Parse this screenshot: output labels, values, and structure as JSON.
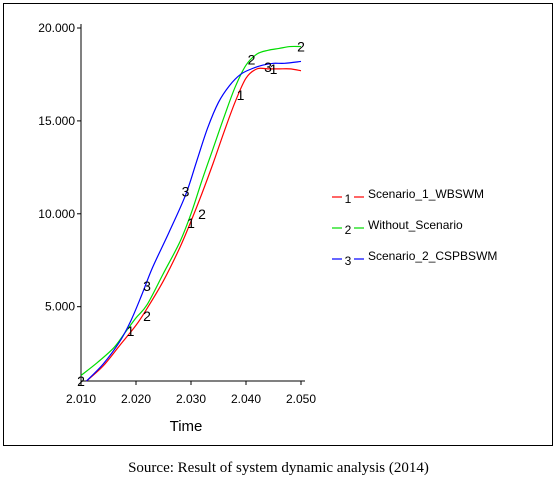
{
  "caption": "Source: Result of system dynamic analysis (2014)",
  "chart_data": {
    "type": "line",
    "xlabel": "Time",
    "ylabel": "",
    "xlim": [
      2010,
      2050
    ],
    "ylim": [
      1000,
      20000
    ],
    "x_ticks": [
      2010,
      2020,
      2030,
      2040,
      2050
    ],
    "x_tick_labels": [
      "2.010",
      "2.020",
      "2.030",
      "2.040",
      "2.050"
    ],
    "y_ticks": [
      5000,
      10000,
      15000,
      20000
    ],
    "y_tick_labels": [
      "5.000",
      "10.000",
      "15.000",
      "20.000"
    ],
    "legend_position": "right",
    "grid": false,
    "series": [
      {
        "name": "Scenario_1_WBSWM",
        "marker": "1",
        "color": "#ff0000",
        "x": [
          2011,
          2014,
          2017,
          2020,
          2022,
          2025,
          2028,
          2030,
          2032,
          2034,
          2036,
          2038,
          2040,
          2042,
          2044,
          2046,
          2048,
          2050
        ],
        "y": [
          1000,
          1800,
          2900,
          4000,
          4900,
          6400,
          8200,
          9600,
          11100,
          12700,
          14400,
          16000,
          17300,
          17800,
          17800,
          17800,
          17800,
          17700
        ],
        "markers": [
          [
            2019,
            3700
          ],
          [
            2030,
            9500
          ],
          [
            2039,
            16400
          ],
          [
            2045,
            17800
          ]
        ]
      },
      {
        "name": "Without_Scenario",
        "marker": "2",
        "color": "#00dd00",
        "x": [
          2010,
          2013,
          2016,
          2018,
          2020,
          2022,
          2025,
          2028,
          2030,
          2032,
          2034,
          2036,
          2038,
          2040,
          2042,
          2044,
          2046,
          2048,
          2050
        ],
        "y": [
          1300,
          2000,
          2800,
          3600,
          4400,
          5100,
          6800,
          8500,
          10000,
          11800,
          13500,
          15200,
          16800,
          18000,
          18600,
          18800,
          18900,
          19000,
          19000
        ],
        "markers": [
          [
            2010,
            1000
          ],
          [
            2022,
            4500
          ],
          [
            2032,
            10000
          ],
          [
            2041,
            18300
          ],
          [
            2050,
            19000
          ]
        ]
      },
      {
        "name": "Scenario_2_CSPBSWM",
        "marker": "3",
        "color": "#0000ff",
        "x": [
          2011,
          2014,
          2017,
          2019,
          2021,
          2023,
          2026,
          2029,
          2031,
          2033,
          2035,
          2037,
          2039,
          2041,
          2043,
          2045,
          2047,
          2050
        ],
        "y": [
          1000,
          1900,
          3100,
          4200,
          5600,
          7100,
          9000,
          11000,
          12800,
          14600,
          16000,
          16900,
          17500,
          17800,
          18000,
          18100,
          18100,
          18200
        ],
        "markers": [
          [
            2022,
            6100
          ],
          [
            2029,
            11200
          ],
          [
            2044,
            17900
          ]
        ]
      }
    ]
  }
}
